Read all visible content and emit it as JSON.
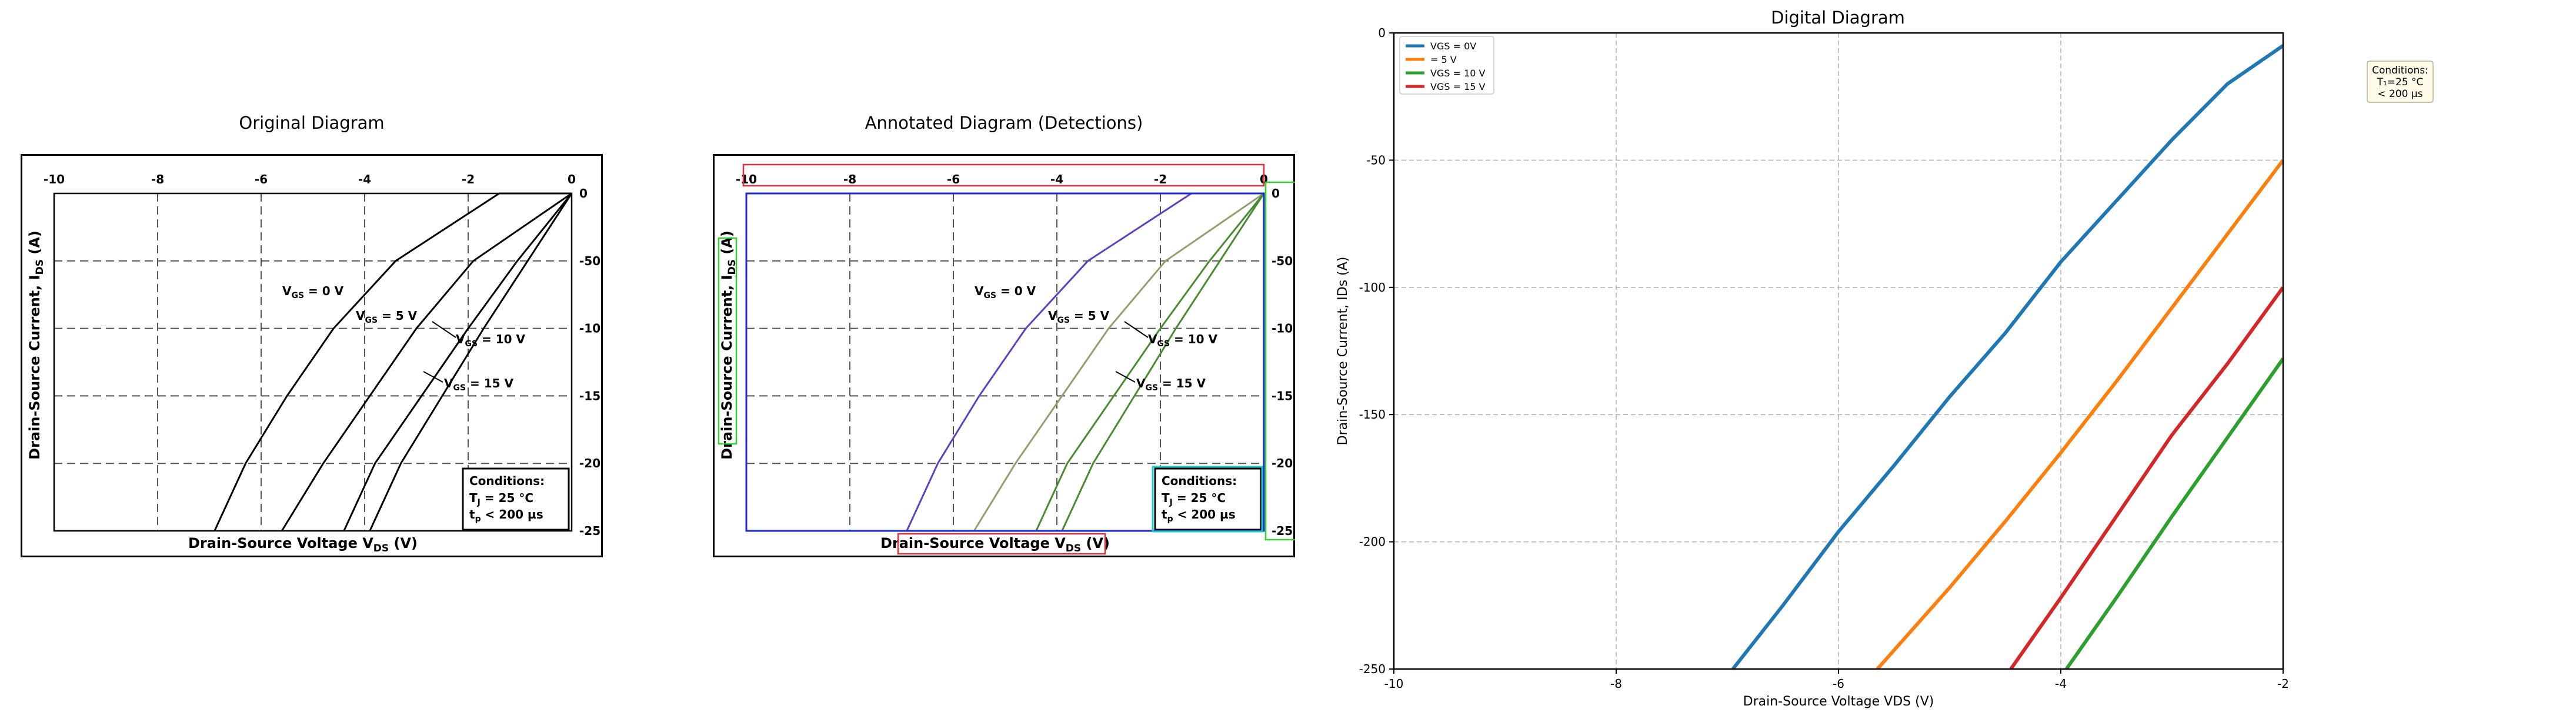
{
  "panels": {
    "original_title": "Original Diagram",
    "annotated_title": "Annotated Diagram (Detections)",
    "digital_title": "Digital Diagram"
  },
  "source_chart": {
    "xlabel": "Drain-Source Voltage V",
    "xlabel_sub": "DS",
    "xlabel_unit": " (V)",
    "ylabel": "Drain-Source Current, I",
    "ylabel_sub": "DS",
    "ylabel_unit": " (A)",
    "x_ticks": [
      "-10",
      "-8",
      "-6",
      "-4",
      "-2",
      "0"
    ],
    "y_ticks": [
      "0",
      "-50",
      "-100",
      "-150",
      "-200",
      "-250"
    ],
    "curve_labels": [
      {
        "prefix": "V",
        "sub": "GS",
        "suffix": " = 0 V"
      },
      {
        "prefix": "V",
        "sub": "GS",
        "suffix": " = 5 V"
      },
      {
        "prefix": "V",
        "sub": "GS",
        "suffix": " = 10 V"
      },
      {
        "prefix": "V",
        "sub": "GS",
        "suffix": " = 15 V"
      }
    ],
    "conditions": {
      "title": "Conditions:",
      "line1_prefix": "T",
      "line1_sub": "J",
      "line1_suffix": " = 25 °C",
      "line2_prefix": "t",
      "line2_sub": "p",
      "line2_suffix": " < 200 µs"
    },
    "colors": {
      "annot_x": "#e03040",
      "annot_y": "#30d030",
      "annot_plot": "#1a2ad0",
      "annot_cond": "#20c8c8",
      "annot_curve0": "#6040c0",
      "annot_curve1": "#90a070",
      "annot_curve2": "#4a8a30"
    }
  },
  "chart_data": {
    "type": "line",
    "title": "Digital Diagram",
    "xlabel": "Drain-Source Voltage VDS (V)",
    "ylabel": "Drain-Source Current, IDs (A)",
    "xlim": [
      -10,
      -2
    ],
    "ylim": [
      -250,
      0
    ],
    "x_ticks": [
      -10,
      -8,
      -6,
      -4,
      -2
    ],
    "y_ticks": [
      0,
      -50,
      -100,
      -150,
      -200,
      -250
    ],
    "grid": true,
    "legend_position": "top-left",
    "series": [
      {
        "name": "VGS = 0V",
        "color": "#1f77b4",
        "x": [
          -6.95,
          -6.5,
          -6.0,
          -5.5,
          -5.0,
          -4.5,
          -4.0,
          -3.5,
          -3.0,
          -2.5,
          -2.0
        ],
        "y": [
          -250,
          -225,
          -196,
          -170,
          -143,
          -118,
          -90,
          -66,
          -42,
          -20,
          -5
        ]
      },
      {
        "name": "= 5 V",
        "color": "#ff7f0e",
        "x": [
          -5.65,
          -5.0,
          -4.5,
          -4.0,
          -3.5,
          -3.0,
          -2.5,
          -2.0
        ],
        "y": [
          -250,
          -218,
          -192,
          -165,
          -137,
          -108,
          -79,
          -50
        ]
      },
      {
        "name": "VGS = 10 V",
        "color": "#2ca02c",
        "x": [
          -3.95,
          -3.5,
          -3.0,
          -2.5,
          -2.0
        ],
        "y": [
          -250,
          -222,
          -190,
          -159,
          -128
        ]
      },
      {
        "name": "VGS = 15 V",
        "color": "#d62728",
        "x": [
          -4.45,
          -4.0,
          -3.5,
          -3.0,
          -2.5,
          -2.0
        ],
        "y": [
          -250,
          -222,
          -190,
          -158,
          -130,
          -100
        ]
      }
    ],
    "annotation": {
      "line1": "Conditions:",
      "line2": "T₁=25 °C",
      "line3": "< 200 µs"
    }
  }
}
